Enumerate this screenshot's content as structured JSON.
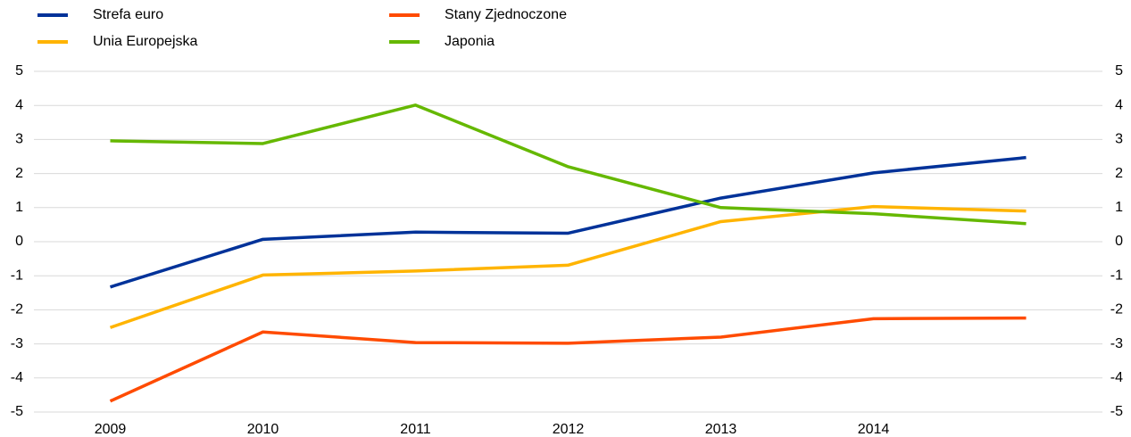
{
  "chart_data": {
    "type": "line",
    "categories": [
      "2009",
      "2010",
      "2011",
      "2012",
      "2013",
      "2014",
      null
    ],
    "series": [
      {
        "name": "Strefa euro",
        "color": "#003299",
        "values": [
          -1.33,
          0.07,
          0.28,
          0.25,
          1.28,
          2.02,
          2.47
        ]
      },
      {
        "name": "Unia Europejska",
        "color": "#ffb400",
        "values": [
          -2.52,
          -0.98,
          -0.86,
          -0.69,
          0.59,
          1.03,
          0.9
        ]
      },
      {
        "name": "Stany Zjednoczone",
        "color": "#ff4b00",
        "values": [
          -4.68,
          -2.65,
          -2.96,
          -2.98,
          -2.8,
          -2.26,
          -2.24
        ]
      },
      {
        "name": "Japonia",
        "color": "#65b800",
        "values": [
          2.96,
          2.88,
          4.01,
          2.2,
          1.0,
          0.82,
          0.53
        ]
      }
    ],
    "ylim": [
      -5,
      5
    ],
    "yticks": [
      -5,
      -4,
      -3,
      -2,
      -1,
      0,
      1,
      2,
      3,
      4,
      5
    ],
    "grid": true
  }
}
